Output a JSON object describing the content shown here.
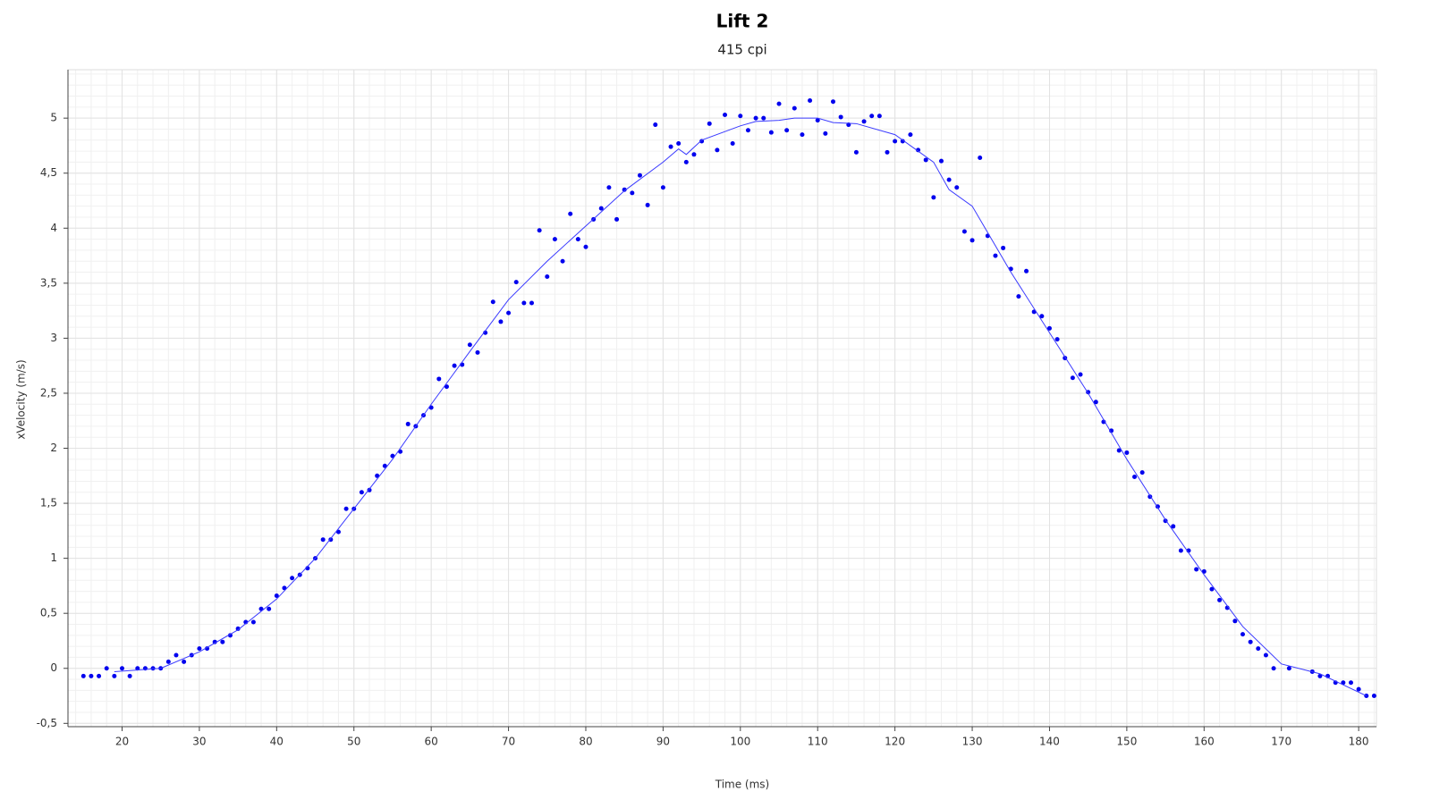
{
  "chart_data": {
    "type": "scatter",
    "title": "Lift 2",
    "subtitle": "415 cpi",
    "x_label": "Time (ms)",
    "y_label": "xVelocity (m/s)",
    "xlim": [
      13,
      182.3
    ],
    "ylim": [
      -0.53,
      5.44
    ],
    "xticks": [
      20,
      30,
      40,
      50,
      60,
      70,
      80,
      90,
      100,
      110,
      120,
      130,
      140,
      150,
      160,
      170,
      180
    ],
    "yticks": [
      {
        "value": -0.5,
        "label": "-0,5"
      },
      0,
      {
        "value": 0.5,
        "label": "0,5"
      },
      1,
      {
        "value": 1.5,
        "label": "1,5"
      },
      2,
      {
        "value": 2.5,
        "label": "2,5"
      },
      3,
      {
        "value": 3.5,
        "label": "3,5"
      },
      4,
      {
        "value": 4.5,
        "label": "4,5"
      },
      5
    ],
    "grid": true,
    "series": [
      {
        "type": "scatter",
        "color": "#0000ee",
        "x": [
          15,
          16,
          17,
          18,
          19,
          20,
          21,
          22,
          23,
          24,
          25,
          26,
          27,
          28,
          29,
          30,
          31,
          32,
          33,
          34,
          35,
          36,
          37,
          38,
          39,
          40,
          41,
          42,
          43,
          44,
          45,
          46,
          47,
          48,
          49,
          50,
          51,
          52,
          53,
          54,
          55,
          56,
          57,
          58,
          59,
          60,
          61,
          62,
          63,
          64,
          65,
          66,
          67,
          68,
          69,
          70,
          71,
          72,
          73,
          74,
          75,
          76,
          77,
          78,
          79,
          80,
          81,
          82,
          83,
          84,
          85,
          86,
          87,
          88,
          89,
          90,
          91,
          92,
          93,
          94,
          95,
          96,
          97,
          98,
          99,
          100,
          101,
          102,
          103,
          104,
          105,
          106,
          107,
          108,
          109,
          110,
          111,
          112,
          113,
          114,
          115,
          116,
          117,
          118,
          119,
          120,
          121,
          122,
          123,
          124,
          125,
          126,
          127,
          128,
          129,
          130,
          131,
          132,
          133,
          134,
          135,
          136,
          137,
          138,
          139,
          140,
          141,
          142,
          143,
          144,
          145,
          146,
          147,
          148,
          149,
          150,
          151,
          152,
          153,
          154,
          155,
          156,
          157,
          158,
          159,
          160,
          161,
          162,
          163,
          164,
          165,
          166,
          167,
          168,
          169,
          171,
          174,
          175,
          176,
          177,
          178,
          179,
          180,
          181,
          182
        ],
        "values": [
          -0.07,
          -0.07,
          -0.07,
          0,
          -0.07,
          0,
          -0.07,
          0,
          0,
          0,
          0,
          0.06,
          0.12,
          0.06,
          0.12,
          0.18,
          0.18,
          0.24,
          0.24,
          0.3,
          0.36,
          0.42,
          0.42,
          0.54,
          0.54,
          0.66,
          0.73,
          0.82,
          0.85,
          0.91,
          1.0,
          1.17,
          1.17,
          1.24,
          1.45,
          1.45,
          1.6,
          1.62,
          1.75,
          1.84,
          1.93,
          1.97,
          2.22,
          2.2,
          2.3,
          2.37,
          2.63,
          2.56,
          2.75,
          2.76,
          2.94,
          2.87,
          3.05,
          3.33,
          3.15,
          3.23,
          3.51,
          3.32,
          3.32,
          3.98,
          3.56,
          3.9,
          3.7,
          4.13,
          3.9,
          3.83,
          4.08,
          4.18,
          4.37,
          4.08,
          4.35,
          4.32,
          4.48,
          4.21,
          4.94,
          4.37,
          4.74,
          4.77,
          4.6,
          4.67,
          4.79,
          4.95,
          4.71,
          5.03,
          4.77,
          5.02,
          4.89,
          5.0,
          5.0,
          4.87,
          5.13,
          4.89,
          5.09,
          4.85,
          5.16,
          4.98,
          4.86,
          5.15,
          5.01,
          4.94,
          4.69,
          4.97,
          5.02,
          5.02,
          4.69,
          4.79,
          4.79,
          4.85,
          4.71,
          4.62,
          4.28,
          4.61,
          4.44,
          4.37,
          3.97,
          3.89,
          4.64,
          3.93,
          3.75,
          3.82,
          3.63,
          3.38,
          3.61,
          3.24,
          3.2,
          3.09,
          2.99,
          2.82,
          2.64,
          2.67,
          2.51,
          2.42,
          2.24,
          2.16,
          1.98,
          1.96,
          1.74,
          1.78,
          1.56,
          1.47,
          1.34,
          1.29,
          1.07,
          1.07,
          0.9,
          0.88,
          0.72,
          0.62,
          0.55,
          0.43,
          0.31,
          0.24,
          0.18,
          0.12,
          0,
          0,
          -0.03,
          -0.07,
          -0.07,
          -0.13,
          -0.13,
          -0.13,
          -0.19,
          -0.25,
          -0.25
        ]
      },
      {
        "type": "line",
        "color": "#3a3aff",
        "x": [
          19,
          25,
          30,
          35,
          40,
          45,
          50,
          55,
          60,
          65,
          70,
          75,
          80,
          85,
          90,
          92,
          93,
          95,
          100,
          102,
          105,
          107,
          110,
          112,
          115,
          120,
          122,
          125,
          127,
          130,
          135,
          140,
          145,
          150,
          155,
          160,
          165,
          170,
          175,
          181
        ],
        "values": [
          -0.03,
          0.0,
          0.15,
          0.35,
          0.63,
          1.0,
          1.45,
          1.9,
          2.4,
          2.88,
          3.35,
          3.7,
          4.02,
          4.34,
          4.6,
          4.72,
          4.67,
          4.8,
          4.93,
          4.97,
          4.98,
          5.0,
          5.0,
          4.96,
          4.95,
          4.85,
          4.75,
          4.6,
          4.35,
          4.2,
          3.6,
          3.05,
          2.5,
          1.9,
          1.35,
          0.85,
          0.38,
          0.04,
          -0.05,
          -0.25
        ]
      }
    ]
  }
}
